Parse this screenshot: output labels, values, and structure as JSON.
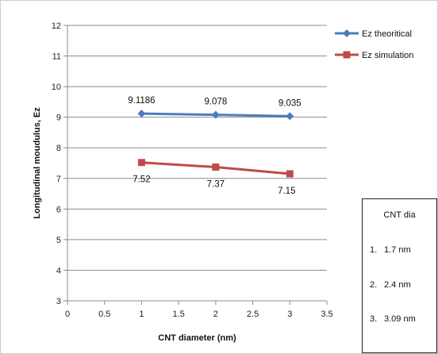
{
  "chart_data": {
    "type": "line",
    "x": [
      1,
      2,
      3
    ],
    "xlabel": "CNT diameter (nm)",
    "ylabel": "Longitudinal moudulus, Ez",
    "xlim": [
      0,
      3.5
    ],
    "ylim": [
      3,
      12
    ],
    "x_ticks": [
      "0",
      "0.5",
      "1",
      "1.5",
      "2",
      "2.5",
      "3",
      "3.5"
    ],
    "y_ticks": [
      "3",
      "4",
      "5",
      "6",
      "7",
      "8",
      "9",
      "10",
      "11",
      "12"
    ],
    "grid": "horizontal",
    "legend_position": "top-right",
    "series": [
      {
        "name": "Ez theoritical",
        "values": [
          9.1186,
          9.078,
          9.035
        ],
        "labels": [
          "9.1186",
          "9.078",
          "9.035"
        ],
        "color": "#4a7ebb",
        "marker": "diamond",
        "label_position": "above"
      },
      {
        "name": "Ez simulation",
        "values": [
          7.52,
          7.37,
          7.15
        ],
        "labels": [
          "7.52",
          "7.37",
          "7.15"
        ],
        "color": "#be4b48",
        "marker": "square",
        "label_position": "below"
      }
    ]
  },
  "note": {
    "title": "CNT dia",
    "items": [
      {
        "num": "1.",
        "text": "1.7 nm"
      },
      {
        "num": "2.",
        "text": "2.4 nm"
      },
      {
        "num": "3.",
        "text": "3.09 nm"
      }
    ]
  }
}
